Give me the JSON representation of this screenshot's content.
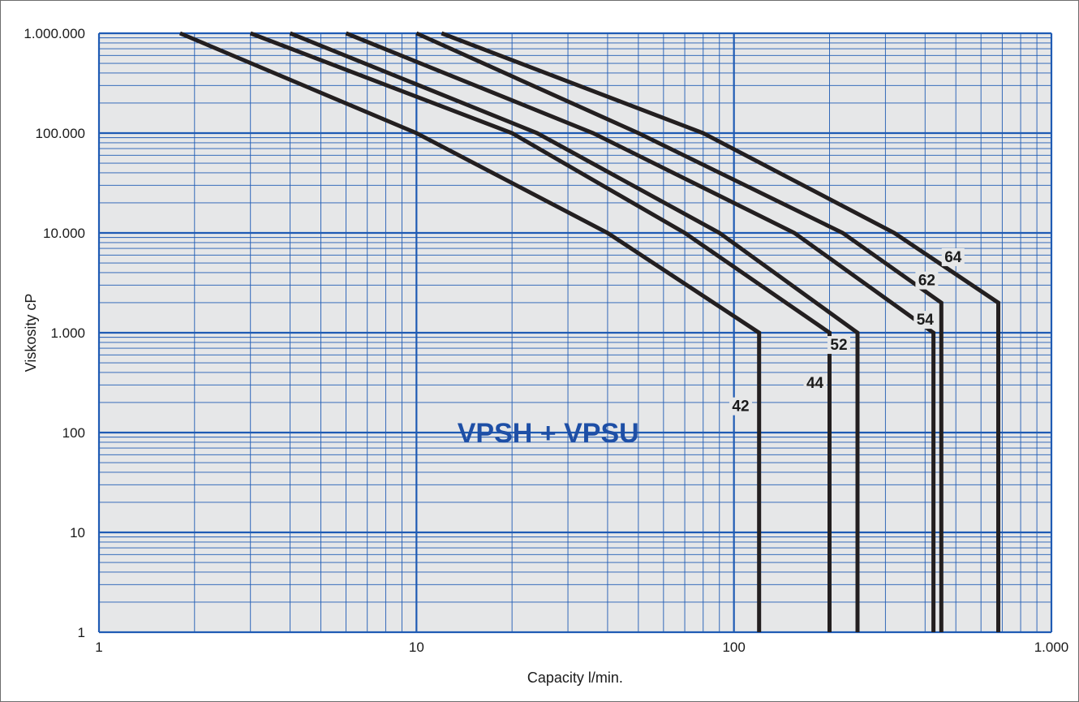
{
  "chart_data": {
    "type": "line",
    "title": "",
    "annotation": "VPSH + VPSU",
    "xlabel": "Capacity l/min.",
    "ylabel": "Viskosity cP",
    "xscale": "log",
    "yscale": "log",
    "xlim": [
      1,
      1000
    ],
    "ylim": [
      1,
      1000000
    ],
    "grid": true,
    "x_ticks": [
      {
        "value": 1,
        "label": "1"
      },
      {
        "value": 10,
        "label": "10"
      },
      {
        "value": 100,
        "label": "100"
      },
      {
        "value": 1000,
        "label": "1.000"
      }
    ],
    "y_ticks": [
      {
        "value": 1,
        "label": "1"
      },
      {
        "value": 10,
        "label": "10"
      },
      {
        "value": 100,
        "label": "100"
      },
      {
        "value": 1000,
        "label": "1.000"
      },
      {
        "value": 10000,
        "label": "10.000"
      },
      {
        "value": 100000,
        "label": "100.000"
      },
      {
        "value": 1000000,
        "label": "1.000.000"
      }
    ],
    "colors": {
      "grid": "#1f5bb4",
      "plot_background": "#e6e7e8",
      "curve": "#231f20",
      "annotation": "#1e4fa6"
    },
    "series": [
      {
        "name": "42",
        "label_at": [
          105,
          170
        ],
        "points": [
          [
            1.8,
            1000000
          ],
          [
            10,
            100000
          ],
          [
            40,
            10000
          ],
          [
            120,
            1000
          ],
          [
            120,
            1
          ]
        ]
      },
      {
        "name": "44",
        "label_at": [
          180,
          290
        ],
        "points": [
          [
            3,
            1000000
          ],
          [
            20,
            100000
          ],
          [
            70,
            10000
          ],
          [
            200,
            1000
          ],
          [
            200,
            1
          ]
        ]
      },
      {
        "name": "52",
        "label_at": [
          214,
          700
        ],
        "points": [
          [
            4,
            1000000
          ],
          [
            24,
            100000
          ],
          [
            90,
            10000
          ],
          [
            245,
            1000
          ],
          [
            245,
            1
          ]
        ]
      },
      {
        "name": "54",
        "label_at": [
          400,
          1250
        ],
        "points": [
          [
            6,
            1000000
          ],
          [
            36,
            100000
          ],
          [
            155,
            10000
          ],
          [
            425,
            1000
          ],
          [
            425,
            1
          ]
        ]
      },
      {
        "name": "62",
        "label_at": [
          405,
          3100
        ],
        "points": [
          [
            10,
            1000000
          ],
          [
            50,
            100000
          ],
          [
            220,
            10000
          ],
          [
            450,
            2000
          ],
          [
            450,
            1
          ]
        ]
      },
      {
        "name": "64",
        "label_at": [
          490,
          5300
        ],
        "points": [
          [
            12,
            1000000
          ],
          [
            80,
            100000
          ],
          [
            320,
            10000
          ],
          [
            680,
            2000
          ],
          [
            680,
            1
          ]
        ]
      }
    ]
  }
}
